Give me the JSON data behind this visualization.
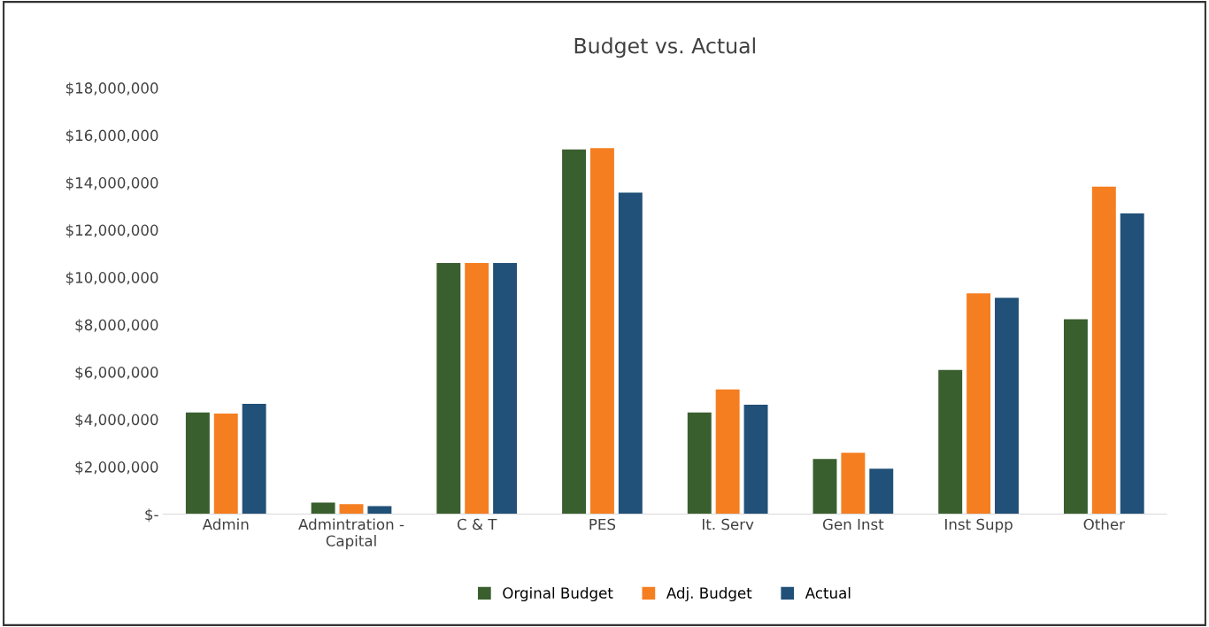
{
  "chart_data": {
    "type": "bar",
    "title": "Budget vs. Actual",
    "categories": [
      "Admin",
      "Admintration -\nCapital",
      "C & T",
      "PES",
      "It. Serv",
      "Gen Inst",
      "Inst Supp",
      "Other"
    ],
    "series": [
      {
        "name": "Orginal Budget",
        "color": "#3a5f2e",
        "values": [
          4290000,
          490000,
          10600000,
          15400000,
          4290000,
          2330000,
          6090000,
          8230000
        ]
      },
      {
        "name": "Adj. Budget",
        "color": "#f57e20",
        "values": [
          4250000,
          420000,
          10600000,
          15450000,
          5260000,
          2590000,
          9320000,
          13830000
        ]
      },
      {
        "name": "Actual",
        "color": "#215078",
        "values": [
          4660000,
          340000,
          10600000,
          13570000,
          4620000,
          1920000,
          9130000,
          12700000
        ]
      }
    ],
    "ylim": [
      0,
      18000000
    ],
    "yticks": [
      {
        "value": 0,
        "label": "$-"
      },
      {
        "value": 2000000,
        "label": "$2,000,000"
      },
      {
        "value": 4000000,
        "label": "$4,000,000"
      },
      {
        "value": 6000000,
        "label": "$6,000,000"
      },
      {
        "value": 8000000,
        "label": "$8,000,000"
      },
      {
        "value": 10000000,
        "label": "$10,000,000"
      },
      {
        "value": 12000000,
        "label": "$12,000,000"
      },
      {
        "value": 14000000,
        "label": "$14,000,000"
      },
      {
        "value": 16000000,
        "label": "$16,000,000"
      },
      {
        "value": 18000000,
        "label": "$18,000,000"
      }
    ],
    "grid": false,
    "legend": "bottom"
  }
}
